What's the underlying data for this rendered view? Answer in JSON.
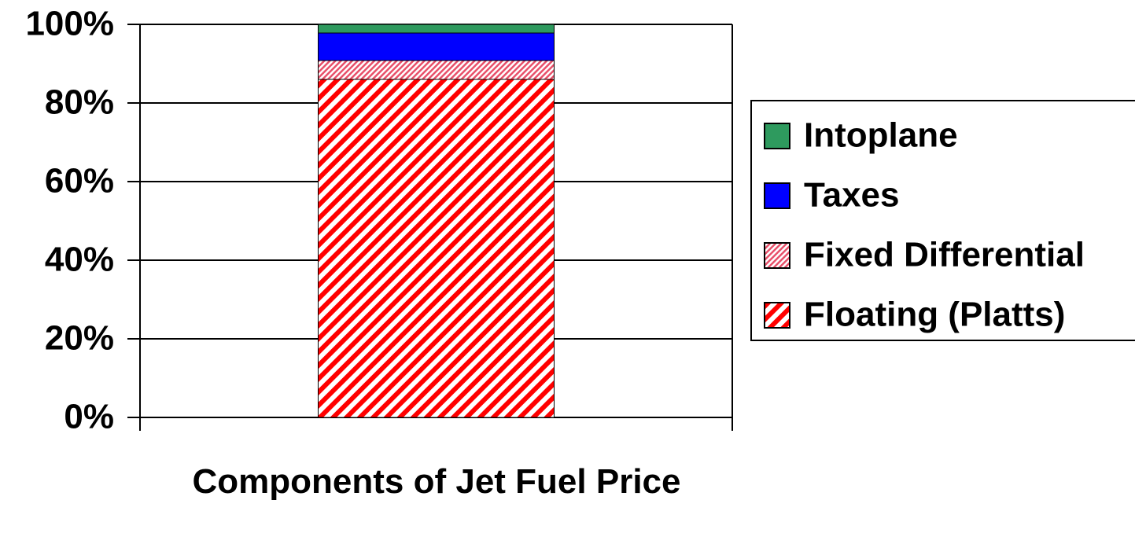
{
  "chart_data": {
    "type": "stacked_bar",
    "categories": [
      "Components of Jet Fuel Price"
    ],
    "series": [
      {
        "name": "Floating (Platts)",
        "color": "#ff0000",
        "values": [
          86
        ]
      },
      {
        "name": "Fixed Differential",
        "color": "#e8506a",
        "values": [
          4.8
        ]
      },
      {
        "name": "Taxes",
        "color": "#0000ff",
        "values": [
          7
        ]
      },
      {
        "name": "Intoplane",
        "color": "#2e9a5e",
        "values": [
          2.2
        ]
      }
    ],
    "ylim": [
      0,
      100
    ],
    "yticks": [
      {
        "value": 0,
        "label": "0%"
      },
      {
        "value": 20,
        "label": "20%"
      },
      {
        "value": 40,
        "label": "40%"
      },
      {
        "value": 60,
        "label": "60%"
      },
      {
        "value": 80,
        "label": "80%"
      },
      {
        "value": 100,
        "label": "100%"
      }
    ],
    "grid": true,
    "legend": "right"
  }
}
